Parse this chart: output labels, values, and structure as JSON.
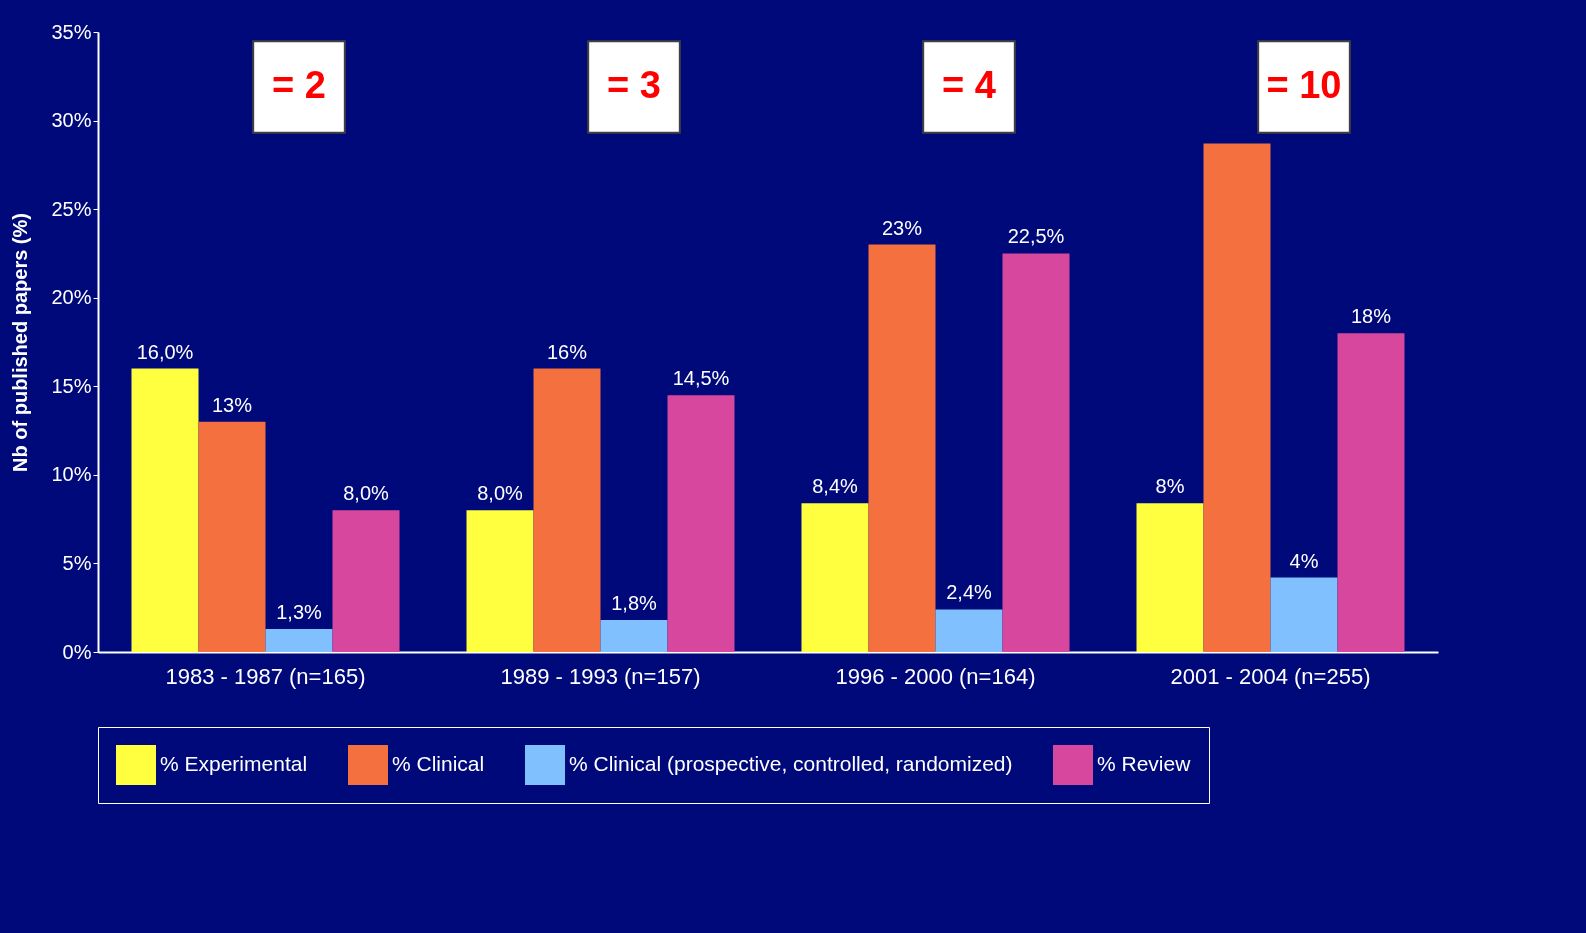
{
  "chart_data": {
    "type": "bar",
    "ylabel": "Nb of published papers (%)",
    "categories": [
      "1983 - 1987 (n=165)",
      "1989 - 1993 (n=157)",
      "1996 - 2000 (n=164)",
      "2001 - 2004 (n=255)"
    ],
    "series": [
      {
        "name": "% Experimental",
        "color": "#ffff40",
        "values": [
          16,
          8,
          8.4,
          8.4
        ],
        "value_labels": [
          "16,0%",
          "8,0%",
          "8,4%",
          "8%"
        ]
      },
      {
        "name": "% Clinical",
        "color": "#f4703f",
        "values": [
          13,
          16,
          23,
          28.7
        ],
        "value_labels": [
          "13%",
          "16%",
          "23%",
          null
        ]
      },
      {
        "name": "% Clinical (prospective, controlled, randomized)",
        "color": "#80c0ff",
        "values": [
          1.3,
          1.8,
          2.4,
          4.2
        ],
        "value_labels": [
          "1,3%",
          "1,8%",
          "2,4%",
          "4%"
        ]
      },
      {
        "name": "% Review",
        "color": "#d8479e",
        "values": [
          8,
          14.5,
          22.5,
          18
        ],
        "value_labels": [
          "8,0%",
          "14,5%",
          "22,5%",
          "18%"
        ]
      }
    ],
    "ylim": [
      0,
      35
    ],
    "yticks": [
      {
        "value": 0,
        "label": "0%"
      },
      {
        "value": 5,
        "label": "5%"
      },
      {
        "value": 10,
        "label": "10%"
      },
      {
        "value": 15,
        "label": "15%"
      },
      {
        "value": 20,
        "label": "20%"
      },
      {
        "value": 25,
        "label": "25%"
      },
      {
        "value": 30,
        "label": "30%"
      },
      {
        "value": 35,
        "label": "35%"
      }
    ],
    "grid": false,
    "legend": "bottom",
    "annotations": [
      "= 2",
      "= 3",
      "= 4",
      "= 10"
    ]
  }
}
